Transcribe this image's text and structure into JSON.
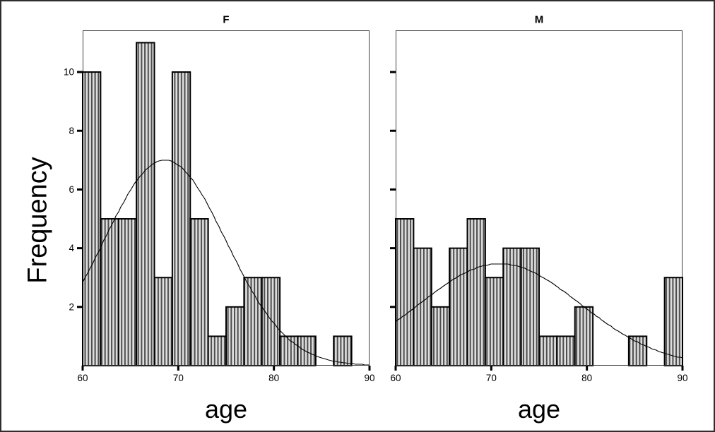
{
  "ylabel": "Frequency",
  "colors": {
    "background": "#ffffff",
    "frame": "#3d3d3d",
    "bar_border": "#000000",
    "bar_stripe_dark": "#4d4d4d",
    "bar_stripe_light": "#dedede",
    "curve": "#000000",
    "tick": "#000000",
    "text": "#000000"
  },
  "chart_data": [
    {
      "type": "histogram",
      "title": "F",
      "xlabel": "age",
      "ylabel": "Frequency",
      "bin_start": 60,
      "bin_width": 1.875,
      "frequencies": [
        10,
        5,
        5,
        11,
        3,
        10,
        5,
        1,
        2,
        3,
        3,
        1,
        1,
        0,
        1,
        0
      ],
      "x_ticks": [
        60,
        70,
        80,
        90
      ],
      "y_ticks": [
        2,
        4,
        6,
        8,
        10
      ],
      "y_tick_labels_visible": true,
      "xlim": [
        60,
        90
      ],
      "ylim": [
        0,
        11.42
      ],
      "grid": false,
      "normal_curve": {
        "mean": 68.6,
        "sd": 6.4,
        "peak": 7.0
      }
    },
    {
      "type": "histogram",
      "title": "M",
      "xlabel": "age",
      "ylabel": "Frequency",
      "bin_start": 60,
      "bin_width": 1.875,
      "frequencies": [
        5,
        4,
        2,
        4,
        5,
        3,
        4,
        4,
        1,
        1,
        2,
        0,
        0,
        1,
        0,
        3
      ],
      "x_ticks": [
        60,
        70,
        80,
        90
      ],
      "y_ticks": [
        2,
        4,
        6,
        8,
        10
      ],
      "y_tick_labels_visible": false,
      "xlim": [
        60,
        90
      ],
      "ylim": [
        0,
        11.42
      ],
      "grid": false,
      "normal_curve": {
        "mean": 70.9,
        "sd": 8.4,
        "peak": 3.47
      }
    }
  ]
}
